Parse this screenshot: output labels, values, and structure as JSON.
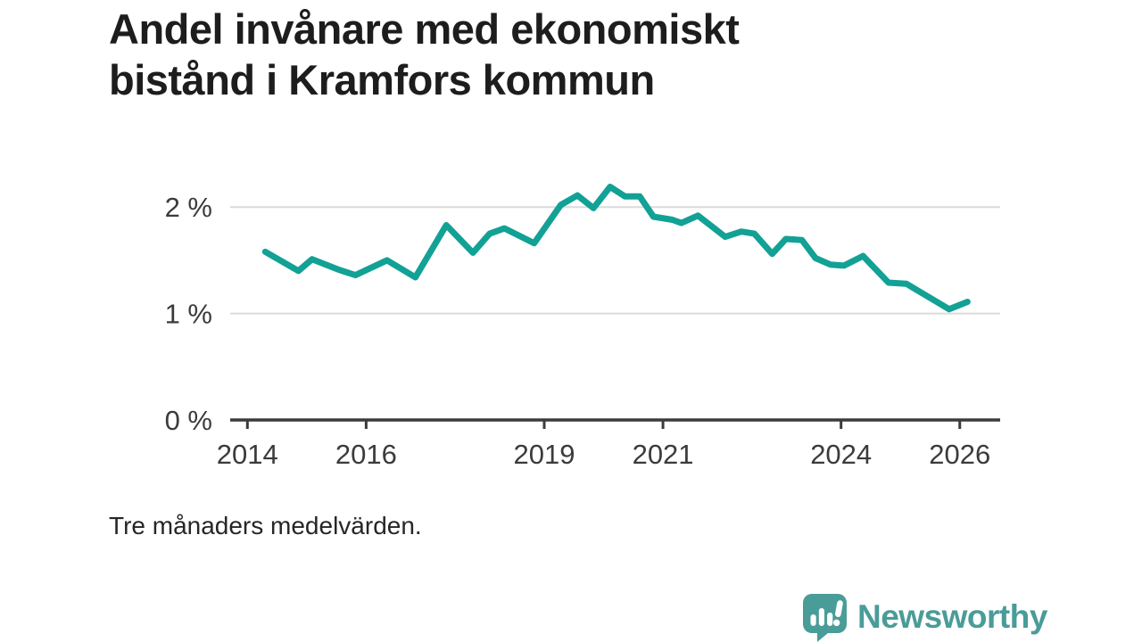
{
  "title_lines": [
    "Andel invånare med ekonomiskt",
    "bistånd i Kramfors kommun"
  ],
  "footnote": "Tre månaders medelvärden.",
  "logo": {
    "name": "Newsworthy",
    "color": "#4a9c98"
  },
  "colors": {
    "line": "#12a195",
    "grid": "#dbdbdb",
    "axis": "#3b3b3b",
    "tick_text": "#3b3b3b",
    "title_text": "#1d1d1d"
  },
  "chart_data": {
    "type": "line",
    "title": "Andel invånare med ekonomiskt bistånd i Kramfors kommun",
    "subtitle": "Tre månaders medelvärden.",
    "xlabel": "",
    "ylabel": "",
    "grid": "horizontal gridlines at 1% and 2%, no vertical grid",
    "legend": "none",
    "xlim": [
      2013.71,
      2026.68
    ],
    "ylim": [
      0,
      2.32
    ],
    "x_ticks": [
      {
        "value": 2014,
        "label": "2014"
      },
      {
        "value": 2016,
        "label": "2016"
      },
      {
        "value": 2019,
        "label": "2019"
      },
      {
        "value": 2021,
        "label": "2021"
      },
      {
        "value": 2024,
        "label": "2024"
      },
      {
        "value": 2026,
        "label": "2026"
      }
    ],
    "y_ticks": [
      {
        "value": 0,
        "label": "0 %"
      },
      {
        "value": 1,
        "label": "1 %"
      },
      {
        "value": 2,
        "label": "2 %"
      }
    ],
    "series": [
      {
        "name": "Andel invånare med ekonomiskt bistånd (%)",
        "color": "#12a195",
        "points": [
          [
            2014.3,
            1.58
          ],
          [
            2014.86,
            1.4
          ],
          [
            2015.09,
            1.51
          ],
          [
            2015.55,
            1.41
          ],
          [
            2015.82,
            1.36
          ],
          [
            2016.35,
            1.5
          ],
          [
            2016.83,
            1.34
          ],
          [
            2017.35,
            1.83
          ],
          [
            2017.8,
            1.57
          ],
          [
            2018.08,
            1.75
          ],
          [
            2018.33,
            1.8
          ],
          [
            2018.83,
            1.66
          ],
          [
            2019.28,
            2.02
          ],
          [
            2019.56,
            2.11
          ],
          [
            2019.83,
            1.99
          ],
          [
            2020.11,
            2.19
          ],
          [
            2020.36,
            2.1
          ],
          [
            2020.61,
            2.1
          ],
          [
            2020.84,
            1.91
          ],
          [
            2021.16,
            1.88
          ],
          [
            2021.31,
            1.85
          ],
          [
            2021.59,
            1.92
          ],
          [
            2022.05,
            1.72
          ],
          [
            2022.32,
            1.77
          ],
          [
            2022.54,
            1.75
          ],
          [
            2022.84,
            1.56
          ],
          [
            2023.07,
            1.7
          ],
          [
            2023.34,
            1.69
          ],
          [
            2023.57,
            1.52
          ],
          [
            2023.82,
            1.46
          ],
          [
            2024.05,
            1.45
          ],
          [
            2024.37,
            1.54
          ],
          [
            2024.8,
            1.29
          ],
          [
            2025.1,
            1.28
          ],
          [
            2025.82,
            1.04
          ],
          [
            2026.13,
            1.11
          ]
        ]
      }
    ]
  }
}
